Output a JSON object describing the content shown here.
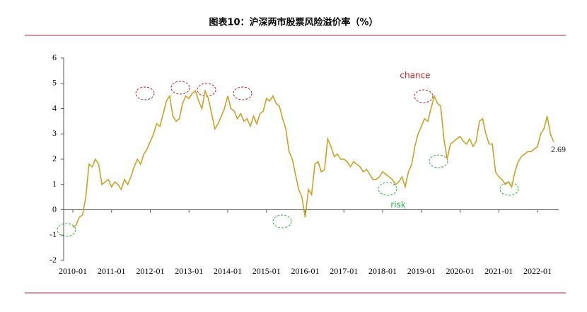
{
  "chart_data": {
    "type": "line",
    "title": "图表10：沪深两市股票风险溢价率（%）",
    "x": [
      "2010-01",
      "2010-02",
      "2010-03",
      "2010-04",
      "2010-05",
      "2010-06",
      "2010-07",
      "2010-08",
      "2010-09",
      "2010-10",
      "2010-11",
      "2010-12",
      "2011-01",
      "2011-02",
      "2011-03",
      "2011-04",
      "2011-05",
      "2011-06",
      "2011-07",
      "2011-08",
      "2011-09",
      "2011-10",
      "2011-11",
      "2011-12",
      "2012-01",
      "2012-02",
      "2012-03",
      "2012-04",
      "2012-05",
      "2012-06",
      "2012-07",
      "2012-08",
      "2012-09",
      "2012-10",
      "2012-11",
      "2012-12",
      "2013-01",
      "2013-02",
      "2013-03",
      "2013-04",
      "2013-05",
      "2013-06",
      "2013-07",
      "2013-08",
      "2013-09",
      "2013-10",
      "2013-11",
      "2013-12",
      "2014-01",
      "2014-02",
      "2014-03",
      "2014-04",
      "2014-05",
      "2014-06",
      "2014-07",
      "2014-08",
      "2014-09",
      "2014-10",
      "2014-11",
      "2014-12",
      "2015-01",
      "2015-02",
      "2015-03",
      "2015-04",
      "2015-05",
      "2015-06",
      "2015-07",
      "2015-08",
      "2015-09",
      "2015-10",
      "2015-11",
      "2015-12",
      "2016-01",
      "2016-02",
      "2016-03",
      "2016-04",
      "2016-05",
      "2016-06",
      "2016-07",
      "2016-08",
      "2016-09",
      "2016-10",
      "2016-11",
      "2016-12",
      "2017-01",
      "2017-02",
      "2017-03",
      "2017-04",
      "2017-05",
      "2017-06",
      "2017-07",
      "2017-08",
      "2017-09",
      "2017-10",
      "2017-11",
      "2017-12",
      "2018-01",
      "2018-02",
      "2018-03",
      "2018-04",
      "2018-05",
      "2018-06",
      "2018-07",
      "2018-08",
      "2018-09",
      "2018-10",
      "2018-11",
      "2018-12",
      "2019-01",
      "2019-02",
      "2019-03",
      "2019-04",
      "2019-05",
      "2019-06",
      "2019-07",
      "2019-08",
      "2019-09",
      "2019-10",
      "2019-11",
      "2019-12",
      "2020-01",
      "2020-02",
      "2020-03",
      "2020-04",
      "2020-05",
      "2020-06",
      "2020-07",
      "2020-08",
      "2020-09",
      "2020-10",
      "2020-11",
      "2020-12",
      "2021-01",
      "2021-02",
      "2021-03",
      "2021-04",
      "2021-05",
      "2021-06",
      "2021-07",
      "2021-08",
      "2021-09",
      "2021-10",
      "2021-11",
      "2021-12",
      "2022-01",
      "2022-02",
      "2022-03",
      "2022-04",
      "2022-05",
      "2022-06"
    ],
    "series": [
      {
        "color": "#c9a227",
        "values": [
          -0.7,
          -0.6,
          -0.3,
          -0.2,
          0.5,
          1.8,
          1.7,
          2.0,
          1.8,
          1.0,
          1.1,
          1.2,
          0.9,
          1.1,
          1.0,
          0.8,
          1.2,
          1.0,
          1.3,
          1.7,
          2.0,
          1.8,
          2.2,
          2.4,
          2.7,
          3.0,
          3.4,
          3.3,
          3.8,
          4.3,
          4.5,
          3.7,
          3.5,
          3.6,
          4.2,
          4.5,
          4.4,
          4.6,
          4.7,
          4.3,
          4.0,
          4.7,
          4.4,
          3.8,
          3.2,
          3.4,
          3.7,
          4.0,
          4.5,
          4.0,
          3.9,
          3.6,
          3.8,
          3.5,
          3.6,
          3.3,
          3.7,
          3.4,
          3.8,
          3.9,
          4.4,
          4.3,
          4.5,
          4.2,
          4.1,
          3.6,
          3.2,
          2.3,
          2.0,
          1.4,
          0.8,
          0.5,
          -0.3,
          0.8,
          0.6,
          1.8,
          1.9,
          1.5,
          1.6,
          2.8,
          2.5,
          2.1,
          2.2,
          2.0,
          2.0,
          1.9,
          1.7,
          1.9,
          1.8,
          1.7,
          1.5,
          1.6,
          1.4,
          1.2,
          1.2,
          1.3,
          1.5,
          1.4,
          1.3,
          1.2,
          1.0,
          1.1,
          1.3,
          0.9,
          1.5,
          1.8,
          2.5,
          3.0,
          3.3,
          3.6,
          3.5,
          4.0,
          4.5,
          4.2,
          4.1,
          2.8,
          2.0,
          2.6,
          2.7,
          2.8,
          2.9,
          2.7,
          2.6,
          2.8,
          2.5,
          2.7,
          3.5,
          3.6,
          3.0,
          2.6,
          2.6,
          1.5,
          1.3,
          1.2,
          1.0,
          1.1,
          0.9,
          1.5,
          1.9,
          2.1,
          2.2,
          2.3,
          2.3,
          2.4,
          2.5,
          3.0,
          3.2,
          3.7,
          3.0,
          2.69
        ]
      }
    ],
    "xticks": [
      "2010-01",
      "2011-01",
      "2012-01",
      "2013-01",
      "2014-01",
      "2015-01",
      "2016-01",
      "2017-01",
      "2018-01",
      "2019-01",
      "2020-01",
      "2021-01",
      "2022-01"
    ],
    "ylim": [
      -2,
      6
    ],
    "yticks": [
      -2,
      -1,
      0,
      1,
      2,
      3,
      4,
      5,
      6
    ],
    "annotations": [
      {
        "text": "chance",
        "color": "#c0272d"
      },
      {
        "text": "risk",
        "color": "#2db34a"
      },
      {
        "text": "2.69",
        "color": "#222222"
      }
    ]
  }
}
